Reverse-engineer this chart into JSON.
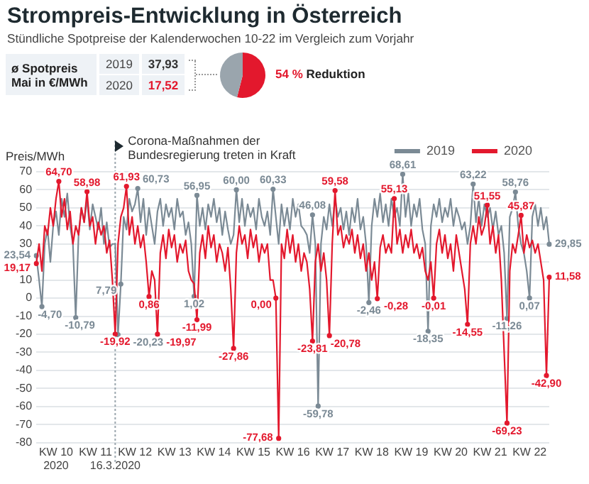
{
  "chart_data": [
    {
      "type": "line",
      "title": "Strompreis-Entwicklung in Österreich",
      "subtitle": "Stündliche Spotpreise der Kalenderwochen 10-22 im Vergleich zum Vorjahr",
      "ylabel": "Preis/MWh",
      "categories": [
        null,
        null,
        null,
        null,
        null,
        null,
        null,
        "KW 10\n2020",
        null,
        null,
        null,
        null,
        null,
        null,
        null,
        null,
        null,
        null,
        null,
        null,
        null,
        "KW 11",
        null,
        null,
        null,
        null,
        null,
        null,
        "16.3.2020",
        null,
        null,
        null,
        null,
        null,
        null,
        "KW 12",
        null,
        null,
        null,
        null,
        null,
        null,
        null,
        null,
        null,
        null,
        null,
        null,
        null,
        "KW 13",
        null,
        null,
        null,
        null,
        null,
        null,
        null,
        null,
        null,
        null,
        null,
        null,
        null,
        "KW 14",
        null,
        null,
        null,
        null,
        null,
        null,
        null,
        null,
        null,
        null,
        null,
        null,
        null,
        "KW 15",
        null,
        null,
        null,
        null,
        null,
        null,
        null,
        null,
        null,
        null,
        null,
        null,
        null,
        "KW 16",
        null,
        null,
        null,
        null,
        null,
        null,
        null,
        null,
        null,
        null,
        null,
        null,
        null,
        "KW 17",
        null,
        null,
        null,
        null,
        null,
        null,
        null,
        null,
        null,
        null,
        null,
        null,
        null,
        "KW 18",
        null,
        null,
        null,
        null,
        null,
        null,
        null,
        null,
        null,
        null,
        null,
        null,
        null,
        "KW 19",
        null,
        null,
        null,
        null,
        null,
        null,
        null,
        null,
        null,
        null,
        null,
        null,
        null,
        "KW 20",
        null,
        null,
        null,
        null,
        null,
        null,
        null,
        null,
        null,
        null,
        null,
        null,
        null,
        "KW 21",
        null,
        null,
        null,
        null,
        null,
        null,
        null,
        null,
        null,
        null,
        null,
        null,
        null,
        "KW 22",
        null,
        null,
        null,
        null,
        null,
        null,
        null
      ],
      "ylim": [
        -80,
        70
      ],
      "yticks": [
        -80,
        -70,
        -60,
        -50,
        -40,
        -30,
        -20,
        -10,
        0,
        10,
        {
          "value": 20,
          "label": null
        },
        30,
        40,
        50,
        60,
        70
      ],
      "grid": "y",
      "legend": "top right",
      "ref_lines": [
        {
          "axis": "x",
          "value": "16.3.2020",
          "label": "Corona-Maßnahmen der Bundesregierung treten in Kraft",
          "line_style": "dotted",
          "color": "#9aa5ad"
        }
      ],
      "series": [
        {
          "name": "2019",
          "color": "#7b8a95",
          "values": [
            23.54,
            10,
            -4.7,
            30,
            38,
            20,
            40,
            48,
            35,
            55,
            45,
            58,
            40,
            30,
            -10.79,
            35,
            50,
            42,
            55,
            38,
            52,
            45,
            38,
            50,
            30,
            42,
            28,
            30,
            30,
            -20.23,
            7.79,
            45,
            38,
            55,
            48,
            52,
            60.73,
            42,
            55,
            35,
            50,
            40,
            30,
            48,
            55,
            40,
            52,
            45,
            50,
            38,
            55,
            45,
            48,
            35,
            42,
            30,
            1.02,
            56.95,
            40,
            50,
            38,
            52,
            45,
            55,
            42,
            50,
            35,
            48,
            38,
            30,
            35,
            60,
            42,
            55,
            40,
            52,
            45,
            50,
            38,
            55,
            45,
            40,
            48,
            35,
            60.33,
            45,
            30,
            52,
            40,
            50,
            38,
            55,
            45,
            52,
            40,
            38,
            35,
            25,
            46.08,
            30,
            -59.78,
            30,
            45,
            38,
            52,
            40,
            55,
            45,
            50,
            38,
            48,
            35,
            50,
            42,
            55,
            38,
            45,
            30,
            -2.46,
            40,
            55,
            45,
            58,
            42,
            52,
            40,
            55,
            45,
            50,
            40,
            68.61,
            45,
            58,
            40,
            52,
            45,
            55,
            38,
            30,
            -18.35,
            40,
            52,
            45,
            55,
            42,
            50,
            45,
            55,
            40,
            50,
            45,
            38,
            42,
            30,
            40,
            63.22,
            42,
            55,
            40,
            52,
            45,
            50,
            38,
            48,
            35,
            40,
            25,
            -11.26,
            45,
            50,
            58.76,
            40,
            30,
            25,
            15,
            0.07,
            45,
            52,
            40,
            50,
            38,
            45,
            29.85
          ],
          "value_labels": [
            "23,54",
            null,
            "-4,70",
            null,
            null,
            null,
            null,
            null,
            null,
            null,
            null,
            null,
            null,
            null,
            "-10,79",
            null,
            null,
            null,
            null,
            null,
            null,
            null,
            null,
            null,
            null,
            null,
            null,
            null,
            null,
            "-20,23",
            "7,79",
            null,
            null,
            null,
            null,
            null,
            "60,73",
            null,
            null,
            null,
            null,
            null,
            null,
            null,
            null,
            null,
            null,
            null,
            null,
            null,
            null,
            null,
            null,
            null,
            null,
            null,
            "1,02",
            "56,95",
            null,
            null,
            null,
            null,
            null,
            null,
            null,
            null,
            null,
            null,
            null,
            null,
            null,
            "60,00",
            null,
            null,
            null,
            null,
            null,
            null,
            null,
            null,
            null,
            null,
            null,
            null,
            "60,33",
            null,
            null,
            null,
            null,
            null,
            null,
            null,
            null,
            null,
            null,
            null,
            null,
            null,
            "46,08",
            null,
            "-59,78",
            null,
            null,
            null,
            null,
            null,
            null,
            null,
            null,
            null,
            null,
            null,
            null,
            null,
            null,
            null,
            null,
            null,
            "-2,46",
            null,
            null,
            null,
            null,
            null,
            null,
            null,
            null,
            null,
            null,
            null,
            "68,61",
            null,
            null,
            null,
            null,
            null,
            null,
            null,
            null,
            "-18,35",
            null,
            null,
            null,
            null,
            null,
            null,
            null,
            null,
            null,
            null,
            null,
            null,
            null,
            null,
            null,
            "63,22",
            null,
            null,
            null,
            null,
            null,
            null,
            null,
            null,
            null,
            null,
            null,
            "-11,26",
            null,
            null,
            "58,76",
            null,
            null,
            null,
            null,
            "0,07",
            null,
            null,
            null,
            null,
            null,
            null,
            "29,85"
          ]
        },
        {
          "name": "2020",
          "color": "#e3182d",
          "values": [
            19.17,
            30,
            15,
            40,
            35,
            50,
            40,
            55,
            64.7,
            45,
            55,
            38,
            48,
            30,
            40,
            35,
            50,
            42,
            58.98,
            40,
            45,
            30,
            42,
            35,
            40,
            25,
            32,
            10,
            -19.92,
            30,
            45,
            50,
            61.93,
            35,
            45,
            30,
            40,
            28,
            35,
            20,
            0.86,
            15,
            10,
            -19.97,
            25,
            35,
            22,
            38,
            28,
            35,
            20,
            30,
            25,
            32,
            15,
            10,
            8,
            -11.99,
            25,
            35,
            22,
            40,
            28,
            35,
            20,
            30,
            25,
            15,
            28,
            5,
            -27.86,
            25,
            40,
            30,
            35,
            22,
            38,
            28,
            35,
            20,
            30,
            25,
            30,
            10,
            10,
            0,
            -77.68,
            30,
            22,
            38,
            25,
            35,
            20,
            30,
            15,
            25,
            20,
            5,
            -23.81,
            20,
            30,
            15,
            25,
            10,
            -20.78,
            30,
            59.58,
            35,
            40,
            28,
            35,
            30,
            38,
            25,
            35,
            22,
            30,
            15,
            25,
            10,
            20,
            -0.28,
            28,
            35,
            25,
            30,
            25,
            55.13,
            30,
            38,
            25,
            35,
            28,
            38,
            25,
            30,
            22,
            28,
            15,
            10,
            20,
            -0.01,
            30,
            38,
            25,
            35,
            22,
            30,
            15,
            35,
            25,
            15,
            5,
            -14.55,
            30,
            40,
            30,
            45,
            35,
            40,
            51.55,
            30,
            40,
            25,
            35,
            10,
            -30,
            -69.23,
            15,
            30,
            25,
            35,
            45.87,
            25,
            35,
            28,
            32,
            25,
            30,
            20,
            10,
            -42.9,
            11.58
          ],
          "value_labels": [
            "19,17",
            null,
            null,
            null,
            null,
            null,
            null,
            null,
            "64,70",
            null,
            null,
            null,
            null,
            null,
            null,
            null,
            null,
            null,
            "58,98",
            null,
            null,
            null,
            null,
            null,
            null,
            null,
            null,
            null,
            "-19,92",
            null,
            null,
            null,
            "61,93",
            null,
            null,
            null,
            null,
            null,
            null,
            null,
            "0,86",
            null,
            null,
            "-19,97",
            null,
            null,
            null,
            null,
            null,
            null,
            null,
            null,
            null,
            null,
            null,
            null,
            null,
            "-11,99",
            null,
            null,
            null,
            null,
            null,
            null,
            null,
            null,
            null,
            null,
            null,
            null,
            "-27,86",
            null,
            null,
            null,
            null,
            null,
            null,
            null,
            null,
            null,
            null,
            null,
            null,
            null,
            null,
            "0,00",
            "-77,68",
            null,
            null,
            null,
            null,
            null,
            null,
            null,
            null,
            null,
            null,
            null,
            "-23,81",
            null,
            null,
            null,
            null,
            null,
            "-20,78",
            null,
            "59,58",
            null,
            null,
            null,
            null,
            null,
            null,
            null,
            null,
            null,
            null,
            null,
            null,
            null,
            null,
            "-0,28",
            null,
            null,
            null,
            null,
            null,
            "55,13",
            null,
            null,
            null,
            null,
            null,
            null,
            null,
            null,
            null,
            null,
            null,
            null,
            null,
            "-0,01",
            null,
            null,
            null,
            null,
            null,
            null,
            null,
            null,
            null,
            null,
            null,
            "-14,55",
            null,
            null,
            null,
            null,
            null,
            null,
            "51,55",
            null,
            null,
            null,
            null,
            null,
            null,
            "-69,23",
            null,
            null,
            null,
            null,
            "45,87",
            null,
            null,
            null,
            null,
            null,
            null,
            null,
            null,
            "-42,90",
            "11,58"
          ]
        }
      ]
    },
    {
      "type": "pie",
      "categories": [
        null,
        null
      ],
      "values": [
        54,
        46
      ],
      "colors": [
        "#e3182d",
        "#9aa5ad"
      ],
      "annotations": [
        "ø Spotpreis Mai in €/MWh",
        "2019",
        "37,93",
        "2020",
        "17,52",
        "54 % Reduktion"
      ]
    }
  ]
}
